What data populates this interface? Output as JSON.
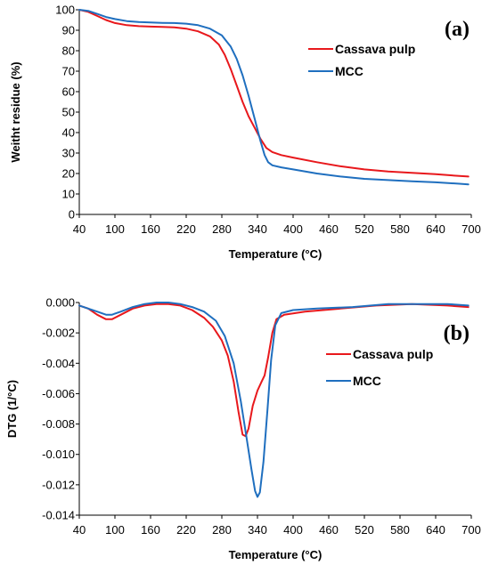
{
  "chart_data": [
    {
      "type": "line",
      "panel_label": "(a)",
      "xlabel": "Temperature (°C)",
      "ylabel": "Weitht residue (%)",
      "xlim": [
        40,
        700
      ],
      "ylim": [
        0,
        100
      ],
      "x_ticks": [
        40,
        100,
        160,
        220,
        280,
        340,
        400,
        460,
        520,
        580,
        640,
        700
      ],
      "y_ticks": [
        0,
        10,
        20,
        30,
        40,
        50,
        60,
        70,
        80,
        90,
        100
      ],
      "y_tick_labels": [
        "0",
        "10",
        "20",
        "30",
        "40",
        "50",
        "60",
        "70",
        "80",
        "90",
        "100"
      ],
      "grid": false,
      "legend_position": "top-right",
      "series": [
        {
          "name": "Cassava pulp",
          "color": "#e8181c",
          "points": [
            [
              40,
              100
            ],
            [
              55,
              99
            ],
            [
              70,
              97
            ],
            [
              85,
              95
            ],
            [
              100,
              93.5
            ],
            [
              120,
              92.5
            ],
            [
              140,
              92
            ],
            [
              160,
              91.8
            ],
            [
              180,
              91.6
            ],
            [
              200,
              91.4
            ],
            [
              220,
              90.8
            ],
            [
              240,
              89.5
            ],
            [
              260,
              87
            ],
            [
              275,
              83
            ],
            [
              285,
              78
            ],
            [
              295,
              71
            ],
            [
              305,
              63
            ],
            [
              315,
              55
            ],
            [
              325,
              48
            ],
            [
              335,
              42.5
            ],
            [
              345,
              37
            ],
            [
              355,
              32.5
            ],
            [
              365,
              30.5
            ],
            [
              380,
              29
            ],
            [
              400,
              27.8
            ],
            [
              440,
              25.5
            ],
            [
              480,
              23.5
            ],
            [
              520,
              22
            ],
            [
              560,
              21
            ],
            [
              600,
              20.3
            ],
            [
              640,
              19.7
            ],
            [
              680,
              18.8
            ],
            [
              695,
              18.5
            ]
          ]
        },
        {
          "name": "MCC",
          "color": "#1f6fbf",
          "points": [
            [
              40,
              100
            ],
            [
              55,
              99.5
            ],
            [
              70,
              98
            ],
            [
              85,
              96.5
            ],
            [
              100,
              95.5
            ],
            [
              120,
              94.5
            ],
            [
              140,
              94
            ],
            [
              160,
              93.8
            ],
            [
              180,
              93.6
            ],
            [
              200,
              93.5
            ],
            [
              220,
              93.2
            ],
            [
              240,
              92.5
            ],
            [
              260,
              90.8
            ],
            [
              280,
              87.5
            ],
            [
              295,
              82
            ],
            [
              305,
              76
            ],
            [
              315,
              68
            ],
            [
              325,
              58
            ],
            [
              335,
              47
            ],
            [
              345,
              36
            ],
            [
              352,
              29
            ],
            [
              358,
              25.5
            ],
            [
              365,
              24
            ],
            [
              380,
              23
            ],
            [
              400,
              22
            ],
            [
              440,
              20
            ],
            [
              480,
              18.5
            ],
            [
              520,
              17.4
            ],
            [
              560,
              16.8
            ],
            [
              600,
              16.2
            ],
            [
              640,
              15.7
            ],
            [
              680,
              15
            ],
            [
              695,
              14.7
            ]
          ]
        }
      ]
    },
    {
      "type": "line",
      "panel_label": "(b)",
      "xlabel": "Temperature (°C)",
      "ylabel": "DTG (1/°C)",
      "xlim": [
        40,
        700
      ],
      "ylim": [
        -0.014,
        0
      ],
      "x_ticks": [
        40,
        100,
        160,
        220,
        280,
        340,
        400,
        460,
        520,
        580,
        640,
        700
      ],
      "y_ticks": [
        0,
        -0.002,
        -0.004,
        -0.006,
        -0.008,
        -0.01,
        -0.012,
        -0.014
      ],
      "y_tick_labels": [
        "0.000",
        "-0.002",
        "-0.004",
        "-0.006",
        "-0.008",
        "-0.010",
        "-0.012",
        "-0.014"
      ],
      "grid": false,
      "legend_position": "middle-right",
      "series": [
        {
          "name": "Cassava pulp",
          "color": "#e8181c",
          "points": [
            [
              40,
              -0.0002
            ],
            [
              55,
              -0.0004
            ],
            [
              70,
              -0.0008
            ],
            [
              85,
              -0.0011
            ],
            [
              95,
              -0.0011
            ],
            [
              110,
              -0.0008
            ],
            [
              130,
              -0.0004
            ],
            [
              150,
              -0.0002
            ],
            [
              170,
              -0.0001
            ],
            [
              190,
              -0.0001
            ],
            [
              210,
              -0.0002
            ],
            [
              230,
              -0.0005
            ],
            [
              250,
              -0.001
            ],
            [
              265,
              -0.0016
            ],
            [
              280,
              -0.0025
            ],
            [
              290,
              -0.0035
            ],
            [
              300,
              -0.0052
            ],
            [
              308,
              -0.0072
            ],
            [
              315,
              -0.0087
            ],
            [
              320,
              -0.0088
            ],
            [
              325,
              -0.0083
            ],
            [
              332,
              -0.0068
            ],
            [
              340,
              -0.0058
            ],
            [
              347,
              -0.0052
            ],
            [
              352,
              -0.0048
            ],
            [
              358,
              -0.0036
            ],
            [
              365,
              -0.002
            ],
            [
              372,
              -0.0011
            ],
            [
              385,
              -0.0008
            ],
            [
              420,
              -0.0006
            ],
            [
              480,
              -0.0004
            ],
            [
              540,
              -0.0002
            ],
            [
              600,
              -0.0001
            ],
            [
              660,
              -0.0002
            ],
            [
              695,
              -0.0003
            ]
          ]
        },
        {
          "name": "MCC",
          "color": "#1f6fbf",
          "points": [
            [
              40,
              -0.0002
            ],
            [
              55,
              -0.0004
            ],
            [
              70,
              -0.0006
            ],
            [
              85,
              -0.0008
            ],
            [
              95,
              -0.0008
            ],
            [
              110,
              -0.0006
            ],
            [
              130,
              -0.0003
            ],
            [
              150,
              -0.0001
            ],
            [
              170,
              0
            ],
            [
              190,
              0
            ],
            [
              210,
              -0.0001
            ],
            [
              230,
              -0.0003
            ],
            [
              250,
              -0.0006
            ],
            [
              270,
              -0.0012
            ],
            [
              285,
              -0.0022
            ],
            [
              300,
              -0.004
            ],
            [
              312,
              -0.0065
            ],
            [
              322,
              -0.009
            ],
            [
              330,
              -0.011
            ],
            [
              336,
              -0.0124
            ],
            [
              340,
              -0.0128
            ],
            [
              344,
              -0.0125
            ],
            [
              350,
              -0.0105
            ],
            [
              357,
              -0.007
            ],
            [
              363,
              -0.0038
            ],
            [
              370,
              -0.0015
            ],
            [
              380,
              -0.0007
            ],
            [
              400,
              -0.0005
            ],
            [
              440,
              -0.0004
            ],
            [
              500,
              -0.0003
            ],
            [
              560,
              -0.0001
            ],
            [
              620,
              -0.0001
            ],
            [
              660,
              -0.0001
            ],
            [
              695,
              -0.0002
            ]
          ]
        }
      ]
    }
  ]
}
